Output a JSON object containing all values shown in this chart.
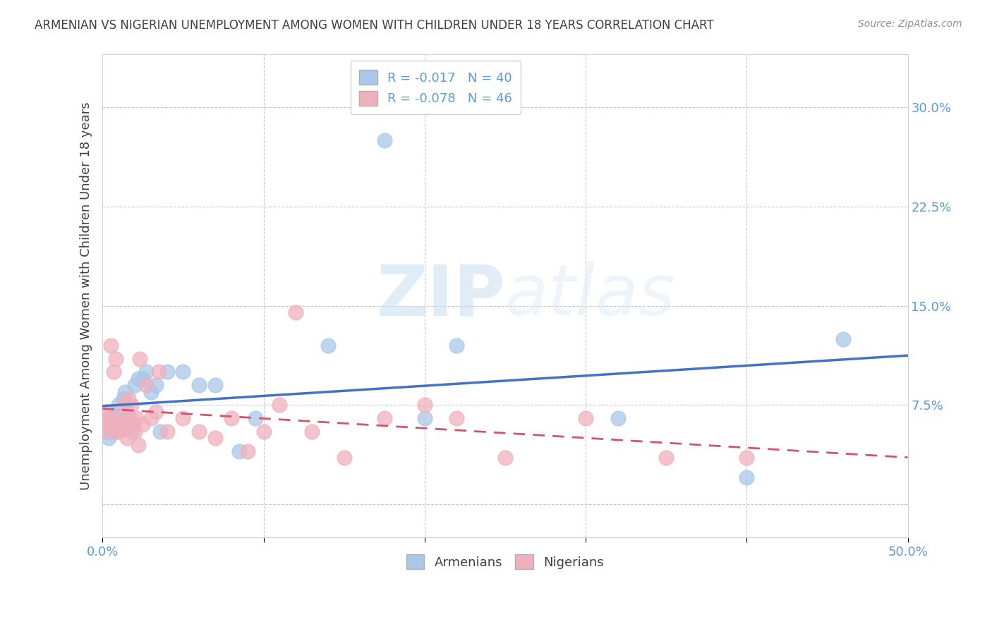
{
  "title": "ARMENIAN VS NIGERIAN UNEMPLOYMENT AMONG WOMEN WITH CHILDREN UNDER 18 YEARS CORRELATION CHART",
  "source": "Source: ZipAtlas.com",
  "ylabel": "Unemployment Among Women with Children Under 18 years",
  "xlabel": "",
  "xlim": [
    0,
    0.5
  ],
  "ylim": [
    -0.025,
    0.34
  ],
  "xticks_major": [
    0.0,
    0.5
  ],
  "xticks_minor": [
    0.1,
    0.2,
    0.3,
    0.4
  ],
  "yticks": [
    0.0,
    0.075,
    0.15,
    0.225,
    0.3
  ],
  "ytick_labels": [
    "",
    "7.5%",
    "15.0%",
    "22.5%",
    "30.0%"
  ],
  "xtick_labels_major": [
    "0.0%",
    "50.0%"
  ],
  "armenians_R": -0.017,
  "armenians_N": 40,
  "nigerians_R": -0.078,
  "nigerians_N": 46,
  "armenian_color": "#a8c8e8",
  "nigerian_color": "#f0b0be",
  "armenian_line_color": "#4472c4",
  "nigerian_line_color": "#d0546a",
  "background_color": "#ffffff",
  "watermark_zip": "ZIP",
  "watermark_atlas": "atlas",
  "armenians_x": [
    0.001,
    0.002,
    0.003,
    0.004,
    0.005,
    0.006,
    0.006,
    0.007,
    0.008,
    0.009,
    0.01,
    0.011,
    0.012,
    0.013,
    0.014,
    0.015,
    0.016,
    0.017,
    0.018,
    0.019,
    0.02,
    0.022,
    0.025,
    0.027,
    0.03,
    0.033,
    0.036,
    0.04,
    0.05,
    0.06,
    0.07,
    0.085,
    0.095,
    0.14,
    0.175,
    0.2,
    0.22,
    0.32,
    0.4,
    0.46
  ],
  "armenians_y": [
    0.055,
    0.06,
    0.065,
    0.05,
    0.06,
    0.055,
    0.065,
    0.06,
    0.065,
    0.07,
    0.075,
    0.065,
    0.07,
    0.08,
    0.085,
    0.07,
    0.06,
    0.065,
    0.055,
    0.06,
    0.09,
    0.095,
    0.095,
    0.1,
    0.085,
    0.09,
    0.055,
    0.1,
    0.1,
    0.09,
    0.09,
    0.04,
    0.065,
    0.12,
    0.275,
    0.065,
    0.12,
    0.065,
    0.02,
    0.125
  ],
  "nigerians_x": [
    0.001,
    0.002,
    0.003,
    0.004,
    0.005,
    0.006,
    0.007,
    0.008,
    0.009,
    0.01,
    0.011,
    0.012,
    0.013,
    0.014,
    0.015,
    0.016,
    0.017,
    0.018,
    0.019,
    0.02,
    0.021,
    0.022,
    0.023,
    0.025,
    0.027,
    0.03,
    0.033,
    0.035,
    0.04,
    0.05,
    0.06,
    0.07,
    0.08,
    0.09,
    0.1,
    0.11,
    0.12,
    0.13,
    0.15,
    0.175,
    0.2,
    0.22,
    0.25,
    0.3,
    0.35,
    0.4
  ],
  "nigerians_y": [
    0.065,
    0.07,
    0.055,
    0.06,
    0.12,
    0.065,
    0.1,
    0.11,
    0.055,
    0.055,
    0.06,
    0.065,
    0.075,
    0.06,
    0.05,
    0.08,
    0.065,
    0.075,
    0.06,
    0.055,
    0.065,
    0.045,
    0.11,
    0.06,
    0.09,
    0.065,
    0.07,
    0.1,
    0.055,
    0.065,
    0.055,
    0.05,
    0.065,
    0.04,
    0.055,
    0.075,
    0.145,
    0.055,
    0.035,
    0.065,
    0.075,
    0.065,
    0.035,
    0.065,
    0.035,
    0.035
  ]
}
